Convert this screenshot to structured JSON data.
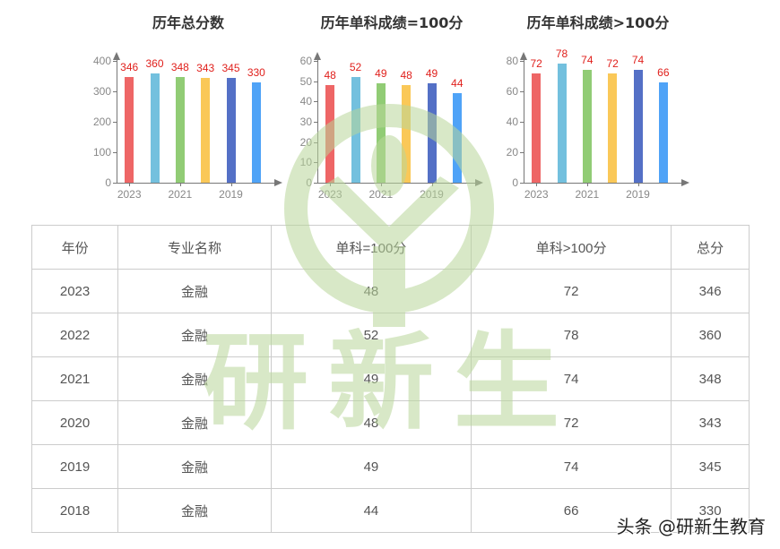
{
  "colors": {
    "bars": [
      "#ee6666",
      "#73c0de",
      "#91cc75",
      "#fac858",
      "#5470c6",
      "#4fa3f7"
    ],
    "value_label": "#e0201c",
    "watermark": "#cfe4b8"
  },
  "chart_data": [
    {
      "type": "bar",
      "title": "历年总分数",
      "categories": [
        "2023",
        "2022",
        "2021",
        "2020",
        "2019",
        "2018"
      ],
      "values": [
        346,
        360,
        348,
        343,
        345,
        330
      ],
      "xtick_labels": [
        "2023",
        "2021",
        "2019"
      ],
      "yticks": [
        0,
        100,
        200,
        300,
        400
      ],
      "ylim": [
        0,
        400
      ],
      "xlabel": "",
      "ylabel": "",
      "grid": false,
      "legend": "none"
    },
    {
      "type": "bar",
      "title": "历年单科成绩=100分",
      "categories": [
        "2023",
        "2022",
        "2021",
        "2020",
        "2019",
        "2018"
      ],
      "values": [
        48,
        52,
        49,
        48,
        49,
        44
      ],
      "xtick_labels": [
        "2023",
        "2021",
        "2019"
      ],
      "yticks": [
        0,
        10,
        20,
        30,
        40,
        50,
        60
      ],
      "ylim": [
        0,
        60
      ],
      "xlabel": "",
      "ylabel": "",
      "grid": false,
      "legend": "none"
    },
    {
      "type": "bar",
      "title": "历年单科成绩>100分",
      "categories": [
        "2023",
        "2022",
        "2021",
        "2020",
        "2019",
        "2018"
      ],
      "values": [
        72,
        78,
        74,
        72,
        74,
        66
      ],
      "xtick_labels": [
        "2023",
        "2021",
        "2019"
      ],
      "yticks": [
        0,
        20,
        40,
        60,
        80
      ],
      "ylim": [
        0,
        80
      ],
      "xlabel": "",
      "ylabel": "",
      "grid": false,
      "legend": "none"
    }
  ],
  "table": {
    "headers": [
      "年份",
      "专业名称",
      "单科=100分",
      "单科>100分",
      "总分"
    ],
    "rows": [
      [
        "2023",
        "金融",
        "48",
        "72",
        "346"
      ],
      [
        "2022",
        "金融",
        "52",
        "78",
        "360"
      ],
      [
        "2021",
        "金融",
        "49",
        "74",
        "348"
      ],
      [
        "2020",
        "金融",
        "48",
        "72",
        "343"
      ],
      [
        "2019",
        "金融",
        "49",
        "74",
        "345"
      ],
      [
        "2018",
        "金融",
        "44",
        "66",
        "330"
      ]
    ]
  },
  "watermark": {
    "text": "研新生",
    "credit": "头条 @研新生教育"
  }
}
